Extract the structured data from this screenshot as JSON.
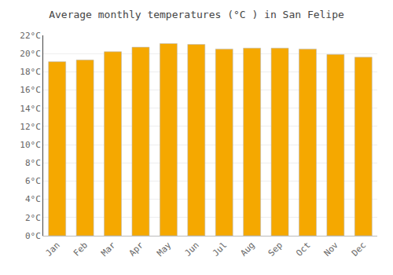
{
  "chart_data": {
    "type": "bar",
    "title": "Average monthly temperatures (°C ) in San Felipe",
    "categories": [
      "Jan",
      "Feb",
      "Mar",
      "Apr",
      "May",
      "Jun",
      "Jul",
      "Aug",
      "Sep",
      "Oct",
      "Nov",
      "Dec"
    ],
    "values": [
      19.1,
      19.3,
      20.2,
      20.7,
      21.1,
      21.0,
      20.5,
      20.6,
      20.6,
      20.5,
      19.9,
      19.6
    ],
    "color": "#F5A800",
    "ylim": [
      0,
      22
    ],
    "yticks": [
      {
        "value": 0,
        "label": "0°C"
      },
      {
        "value": 2,
        "label": "2°C"
      },
      {
        "value": 4,
        "label": "4°C"
      },
      {
        "value": 6,
        "label": "6°C"
      },
      {
        "value": 8,
        "label": "8°C"
      },
      {
        "value": 10,
        "label": "10°C"
      },
      {
        "value": 12,
        "label": "12°C"
      },
      {
        "value": 14,
        "label": "14°C"
      },
      {
        "value": 16,
        "label": "16°C"
      },
      {
        "value": 18,
        "label": "18°C"
      },
      {
        "value": 20,
        "label": "20°C"
      },
      {
        "value": 22,
        "label": "22°C"
      }
    ],
    "grid": true
  }
}
